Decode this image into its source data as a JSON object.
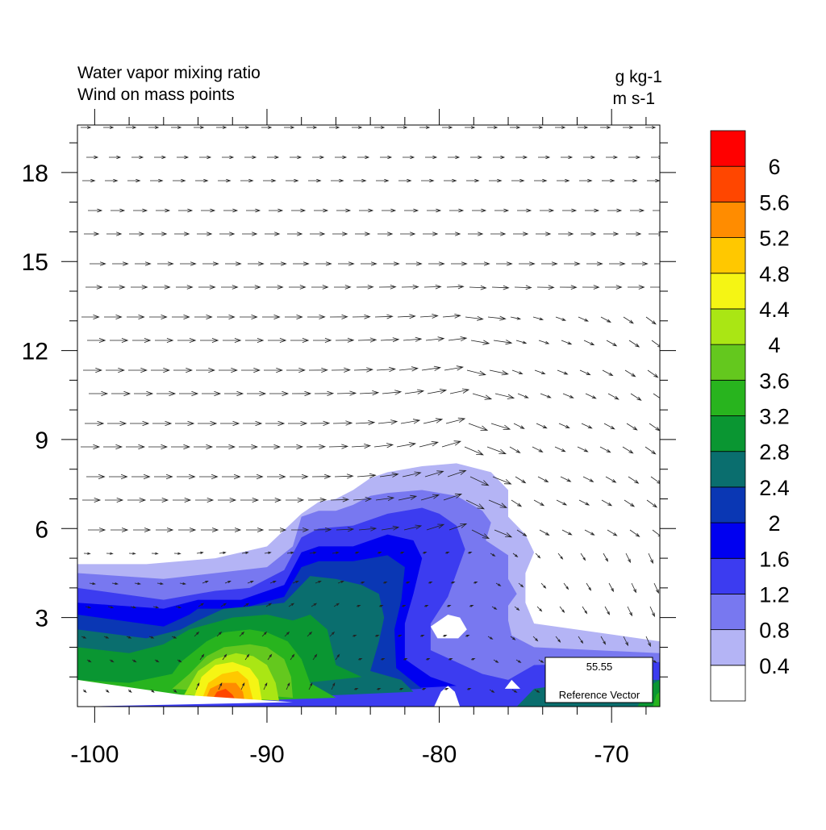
{
  "chart_data": {
    "type": "contour-vector",
    "title_lines": [
      "Water vapor mixing ratio",
      "Wind on mass points"
    ],
    "unit_lines": [
      "g kg-1",
      "m s-1"
    ],
    "xlim": [
      -101,
      -67.2
    ],
    "ylim": [
      0,
      19.6
    ],
    "x_ticks": [
      -100,
      -90,
      -80,
      -70
    ],
    "x_tick_labels": [
      "-100",
      "-90",
      "-80",
      "-70"
    ],
    "y_ticks": [
      3,
      6,
      9,
      12,
      15,
      18
    ],
    "y_tick_labels": [
      "3",
      "6",
      "9",
      "12",
      "15",
      "18"
    ],
    "colorbar": {
      "levels": [
        "0.4",
        "0.8",
        "1.2",
        "1.6",
        "2",
        "2.4",
        "2.8",
        "3.2",
        "3.6",
        "4",
        "4.4",
        "4.8",
        "5.2",
        "5.6",
        "6"
      ],
      "colors": [
        "#ffffff",
        "#b4b4f5",
        "#7878f0",
        "#3c3cf0",
        "#0000f0",
        "#0a37b4",
        "#0a6e6e",
        "#0a9632",
        "#28b41e",
        "#64c81e",
        "#aae614",
        "#f5f514",
        "#ffc800",
        "#ff8c00",
        "#ff4600",
        "#ff0000"
      ]
    },
    "reference_vector": {
      "value": "55.55",
      "label": "Reference Vector"
    },
    "moisture_regions": [
      {
        "level": 1,
        "points": [
          [
            -101,
            4.8
          ],
          [
            -97,
            4.8
          ],
          [
            -93,
            5.0
          ],
          [
            -90,
            5.4
          ],
          [
            -88,
            6.5
          ],
          [
            -87,
            6.9
          ],
          [
            -86,
            7.0
          ],
          [
            -85,
            7.3
          ],
          [
            -84,
            7.7
          ],
          [
            -83,
            7.9
          ],
          [
            -81,
            8.1
          ],
          [
            -79,
            8.2
          ],
          [
            -77,
            7.9
          ],
          [
            -76,
            7.3
          ],
          [
            -76,
            6.4
          ],
          [
            -75,
            5.8
          ],
          [
            -74.5,
            5.2
          ],
          [
            -75,
            4.5
          ],
          [
            -75,
            3.5
          ],
          [
            -74.5,
            2.8
          ],
          [
            -67.2,
            2.2
          ],
          [
            -67.2,
            0
          ],
          [
            -101,
            0
          ]
        ]
      },
      {
        "level": 2,
        "points": [
          [
            -101,
            4.5
          ],
          [
            -96,
            4.3
          ],
          [
            -93,
            4.5
          ],
          [
            -90,
            4.7
          ],
          [
            -88.5,
            5.4
          ],
          [
            -88,
            6.4
          ],
          [
            -87,
            6.6
          ],
          [
            -86,
            6.6
          ],
          [
            -85,
            6.8
          ],
          [
            -84,
            7.1
          ],
          [
            -83,
            7.2
          ],
          [
            -81,
            7.3
          ],
          [
            -80,
            7.2
          ],
          [
            -79,
            7.1
          ],
          [
            -77.5,
            6.6
          ],
          [
            -77,
            6.2
          ],
          [
            -77.3,
            5.6
          ],
          [
            -76,
            5.1
          ],
          [
            -76,
            4.3
          ],
          [
            -75.5,
            3.8
          ],
          [
            -76,
            3.4
          ],
          [
            -76,
            2.9
          ],
          [
            -75.8,
            2.4
          ],
          [
            -74.5,
            2.0
          ],
          [
            -67.2,
            1.8
          ],
          [
            -67.2,
            0
          ],
          [
            -101,
            0
          ]
        ]
      },
      {
        "level": 3,
        "points": [
          [
            -101,
            4.0
          ],
          [
            -96,
            3.6
          ],
          [
            -93,
            3.9
          ],
          [
            -91,
            4.0
          ],
          [
            -89,
            4.6
          ],
          [
            -88,
            5.7
          ],
          [
            -87,
            6.0
          ],
          [
            -85,
            6.1
          ],
          [
            -83,
            6.5
          ],
          [
            -81,
            6.7
          ],
          [
            -80,
            6.5
          ],
          [
            -79,
            6.1
          ],
          [
            -78.5,
            5.3
          ],
          [
            -79,
            4.5
          ],
          [
            -79.5,
            3.7
          ],
          [
            -80.5,
            2.8
          ],
          [
            -80.5,
            1.9
          ],
          [
            -79,
            1.5
          ],
          [
            -77.5,
            1.1
          ],
          [
            -76,
            0.9
          ],
          [
            -74.5,
            1.4
          ],
          [
            -67.2,
            1.5
          ],
          [
            -67.2,
            0
          ],
          [
            -101,
            0
          ]
        ]
      },
      {
        "level": 4,
        "points": [
          [
            -101,
            3.5
          ],
          [
            -96,
            3.3
          ],
          [
            -94,
            3.6
          ],
          [
            -91.5,
            3.6
          ],
          [
            -89,
            4.1
          ],
          [
            -88,
            5.2
          ],
          [
            -87,
            5.4
          ],
          [
            -85,
            5.4
          ],
          [
            -83,
            5.8
          ],
          [
            -81.5,
            5.6
          ],
          [
            -81,
            5.0
          ],
          [
            -81.5,
            3.8
          ],
          [
            -82,
            2.8
          ],
          [
            -82,
            1.6
          ],
          [
            -80.5,
            1.0
          ],
          [
            -79,
            0.7
          ],
          [
            -101,
            0
          ]
        ]
      },
      {
        "level": 5,
        "points": [
          [
            -101,
            3.1
          ],
          [
            -96,
            2.7
          ],
          [
            -94.5,
            3.1
          ],
          [
            -94,
            3.3
          ],
          [
            -91.5,
            3.3
          ],
          [
            -89,
            3.7
          ],
          [
            -88,
            4.7
          ],
          [
            -87,
            4.9
          ],
          [
            -85,
            4.9
          ],
          [
            -83,
            5.1
          ],
          [
            -82,
            4.7
          ],
          [
            -82.2,
            3.6
          ],
          [
            -82.6,
            2.6
          ],
          [
            -82.5,
            1.3
          ],
          [
            -81,
            0.6
          ],
          [
            -101,
            0
          ]
        ]
      },
      {
        "level": 6,
        "points": [
          [
            -101,
            2.6
          ],
          [
            -97,
            2.3
          ],
          [
            -95,
            2.6
          ],
          [
            -94,
            2.9
          ],
          [
            -92.5,
            3.3
          ],
          [
            -90.5,
            3.4
          ],
          [
            -89,
            3.5
          ],
          [
            -87.5,
            4.4
          ],
          [
            -86,
            4.3
          ],
          [
            -84.5,
            4.1
          ],
          [
            -83.5,
            3.8
          ],
          [
            -83.2,
            3.0
          ],
          [
            -83.5,
            2.2
          ],
          [
            -84,
            1.2
          ],
          [
            -82.2,
            0.9
          ],
          [
            -81.5,
            0.5
          ],
          [
            -101,
            0
          ]
        ]
      },
      {
        "level": 7,
        "points": [
          [
            -101,
            2.0
          ],
          [
            -98,
            1.8
          ],
          [
            -96,
            2.1
          ],
          [
            -94.5,
            2.6
          ],
          [
            -92,
            3.0
          ],
          [
            -90,
            3.1
          ],
          [
            -88.5,
            2.9
          ],
          [
            -87.5,
            3.1
          ],
          [
            -86.5,
            2.6
          ],
          [
            -86,
            1.4
          ],
          [
            -84.5,
            1.0
          ],
          [
            -101,
            0
          ]
        ]
      },
      {
        "level": 8,
        "points": [
          [
            -101,
            0.9
          ],
          [
            -98,
            0.8
          ],
          [
            -95.5,
            1.1
          ],
          [
            -95,
            1.5
          ],
          [
            -93.5,
            2.2
          ],
          [
            -92.5,
            2.5
          ],
          [
            -91,
            2.6
          ],
          [
            -90,
            2.5
          ],
          [
            -88.8,
            2.2
          ],
          [
            -88,
            1.6
          ],
          [
            -87.5,
            0.8
          ],
          [
            -86,
            0.3
          ],
          [
            -101,
            0
          ]
        ]
      },
      {
        "level": 9,
        "points": [
          [
            -95.5,
            0.6
          ],
          [
            -94.5,
            1.1
          ],
          [
            -93.5,
            1.7
          ],
          [
            -92.5,
            2.0
          ],
          [
            -91,
            2.1
          ],
          [
            -90,
            2.0
          ],
          [
            -89,
            1.6
          ],
          [
            -88.6,
            1.0
          ],
          [
            -88.5,
            0.3
          ]
        ]
      },
      {
        "level": 10,
        "points": [
          [
            -94.8,
            0.4
          ],
          [
            -94,
            1.2
          ],
          [
            -93,
            1.6
          ],
          [
            -91.8,
            1.8
          ],
          [
            -90.8,
            1.7
          ],
          [
            -90,
            1.4
          ],
          [
            -89.5,
            0.8
          ],
          [
            -89.3,
            0.2
          ]
        ]
      },
      {
        "level": 11,
        "points": [
          [
            -94.3,
            0.2
          ],
          [
            -93.8,
            1.0
          ],
          [
            -93,
            1.4
          ],
          [
            -92,
            1.5
          ],
          [
            -91,
            1.3
          ],
          [
            -90.5,
            0.9
          ],
          [
            -90.3,
            0.2
          ]
        ]
      },
      {
        "level": 12,
        "points": [
          [
            -93.8,
            0.2
          ],
          [
            -93.4,
            0.8
          ],
          [
            -92.6,
            1.1
          ],
          [
            -91.7,
            1.2
          ],
          [
            -91.1,
            0.9
          ],
          [
            -90.8,
            0.2
          ]
        ]
      },
      {
        "level": 13,
        "points": [
          [
            -93.6,
            0.2
          ],
          [
            -93.3,
            0.6
          ],
          [
            -92.6,
            0.8
          ],
          [
            -91.8,
            0.8
          ],
          [
            -91.4,
            0.5
          ],
          [
            -91.3,
            0.2
          ]
        ]
      },
      {
        "level": 14,
        "points": [
          [
            -93.2,
            0.2
          ],
          [
            -92.9,
            0.5
          ],
          [
            -92.4,
            0.6
          ],
          [
            -92.0,
            0.4
          ],
          [
            -91.8,
            0.2
          ]
        ]
      },
      {
        "level": 0,
        "points": [
          [
            -80.5,
            2.7
          ],
          [
            -79.5,
            3.1
          ],
          [
            -78.8,
            3.0
          ],
          [
            -78.4,
            2.6
          ],
          [
            -78.9,
            2.3
          ],
          [
            -80.1,
            2.3
          ]
        ]
      },
      {
        "level": 0,
        "points": [
          [
            -101,
            0.9
          ],
          [
            -95,
            0.4
          ],
          [
            -88.5,
            0.15
          ],
          [
            -101,
            0
          ]
        ]
      },
      {
        "level": 0,
        "points": [
          [
            -80.3,
            0
          ],
          [
            -79.9,
            0.5
          ],
          [
            -79.5,
            0.7
          ],
          [
            -79.1,
            0.5
          ],
          [
            -78.8,
            0
          ]
        ]
      },
      {
        "level": 0,
        "points": [
          [
            -76.2,
            0.6
          ],
          [
            -75.8,
            0.9
          ],
          [
            -75.3,
            0.6
          ]
        ]
      },
      {
        "level": 6,
        "points": [
          [
            -75.5,
            0
          ],
          [
            -74.5,
            0.6
          ],
          [
            -72,
            0.8
          ],
          [
            -68.5,
            0.9
          ],
          [
            -67.2,
            0.9
          ],
          [
            -67.2,
            0
          ]
        ]
      },
      {
        "level": 7,
        "points": [
          [
            -68.5,
            0
          ],
          [
            -67.8,
            0.7
          ],
          [
            -67.2,
            0.9
          ],
          [
            -67.2,
            0
          ]
        ]
      },
      {
        "level": 8,
        "points": [
          [
            -67.6,
            0
          ],
          [
            -67.4,
            0.4
          ],
          [
            -67.2,
            0.5
          ],
          [
            -67.2,
            0
          ]
        ]
      }
    ]
  }
}
